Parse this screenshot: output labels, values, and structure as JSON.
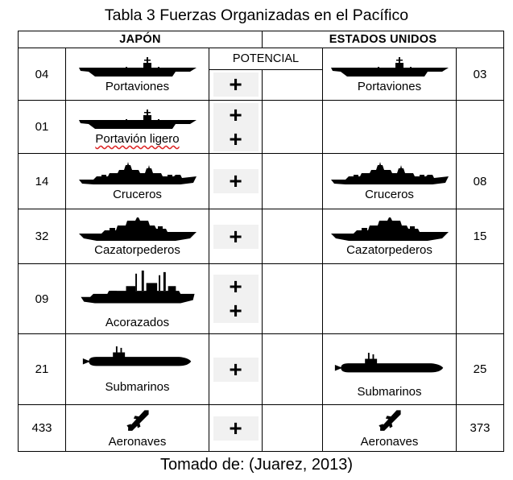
{
  "title": "Tabla 3  Fuerzas Organizadas en el Pacífico",
  "headers": {
    "japan": "JAPÓN",
    "usa": "ESTADOS UNIDOS"
  },
  "potential_label": "POTENCIAL",
  "plus_symbol": "+",
  "caption": "Tomado de: (Juarez, 2013)",
  "rows": [
    {
      "type": "aircraft-carrier",
      "jp_count": "04",
      "jp_label": "Portaviones",
      "plus": 1,
      "us_count": "03",
      "us_label": "Portaviones"
    },
    {
      "type": "light-carrier",
      "jp_count": "01",
      "jp_label": "Portavión ligero",
      "plus": 2,
      "us_count": "",
      "us_label": ""
    },
    {
      "type": "cruiser",
      "jp_count": "14",
      "jp_label": "Cruceros",
      "plus": 1,
      "us_count": "08",
      "us_label": "Cruceros"
    },
    {
      "type": "destroyer",
      "jp_count": "32",
      "jp_label": "Cazatorpederos",
      "plus": 1,
      "us_count": "15",
      "us_label": "Cazatorpederos"
    },
    {
      "type": "battleship",
      "jp_count": "09",
      "jp_label": "Acorazados",
      "plus": 2,
      "us_count": "",
      "us_label": ""
    },
    {
      "type": "submarine",
      "jp_count": "21",
      "jp_label": "Submarinos",
      "plus": 1,
      "us_count": "25",
      "us_label": "Submarinos"
    },
    {
      "type": "aircraft",
      "jp_count": "433",
      "jp_label": "Aeronaves",
      "plus": 1,
      "us_count": "373",
      "us_label": "Aeronaves"
    }
  ]
}
